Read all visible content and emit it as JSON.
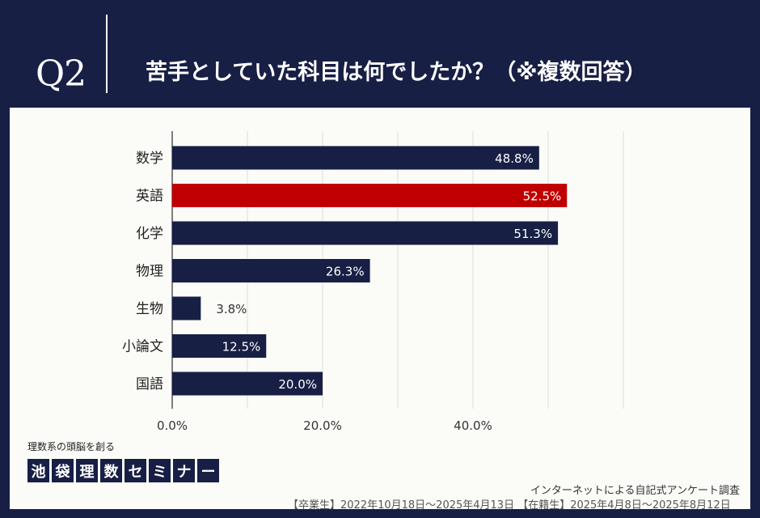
{
  "header": {
    "q_label": "Q2",
    "title": "苦手としていた科目は何でしたか？（※複数回答）"
  },
  "logo": {
    "subtitle": "理数系の頭脳を創る",
    "chars": [
      "池",
      "袋",
      "理",
      "数",
      "セ",
      "ミ",
      "ナ",
      "ー"
    ]
  },
  "footer": {
    "source": "インターネットによる自記式アンケート調査",
    "period": "【卒業生】2022年10月18日～2025年4月13日 【在籍生】2025年4月8日～2025年8月12日"
  },
  "colors": {
    "bar": "#181f45",
    "highlight": "#c00000",
    "background": "#181f45",
    "panel": "#fbfbf8"
  },
  "chart_data": {
    "type": "bar",
    "orientation": "horizontal",
    "categories": [
      "数学",
      "英語",
      "化学",
      "物理",
      "生物",
      "小論文",
      "国語"
    ],
    "values": [
      48.8,
      52.5,
      51.3,
      26.3,
      3.8,
      12.5,
      20.0
    ],
    "value_labels": [
      "48.8%",
      "52.5%",
      "51.3%",
      "26.3%",
      "3.8%",
      "12.5%",
      "20.0%"
    ],
    "highlight_category": "英語",
    "x_ticks": [
      0,
      20,
      40
    ],
    "x_tick_labels": [
      "0.0%",
      "20.0%",
      "40.0%"
    ],
    "gridlines_at": [
      0,
      10,
      20,
      30,
      40,
      50,
      60
    ],
    "xlim": [
      0,
      60
    ],
    "grid": true,
    "title": "",
    "xlabel": "",
    "ylabel": ""
  }
}
